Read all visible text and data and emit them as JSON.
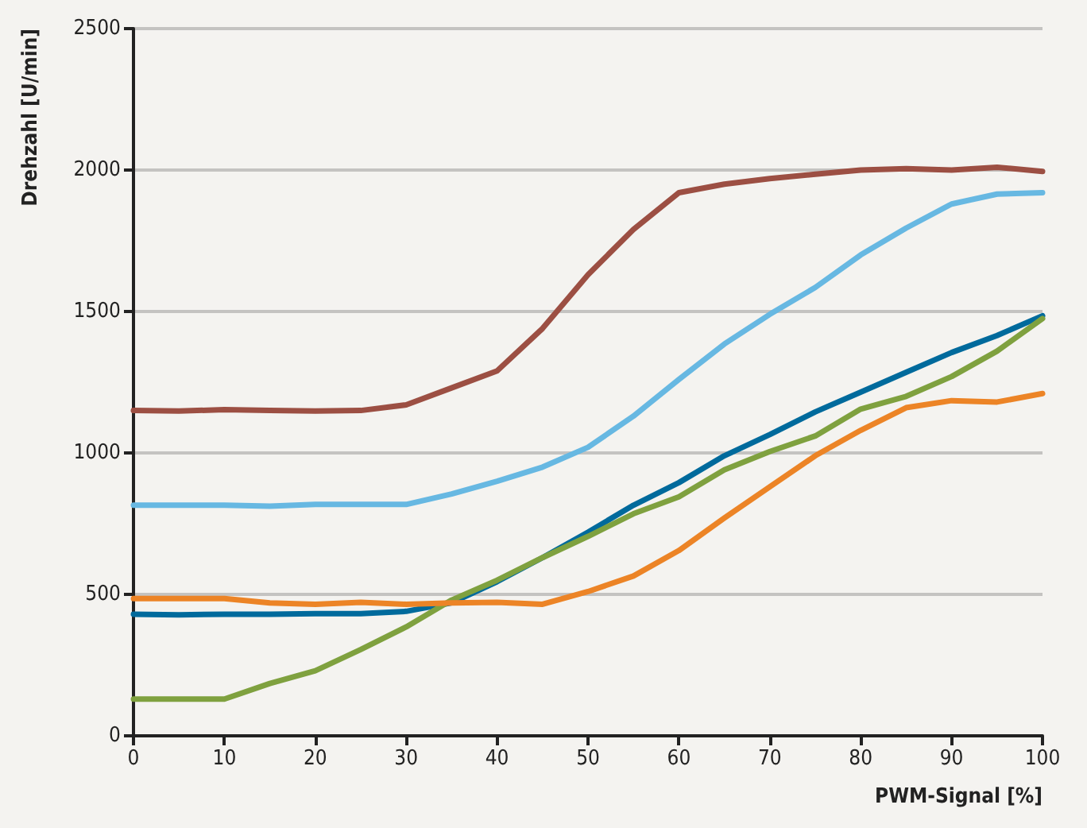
{
  "chart_data": {
    "type": "line",
    "xlabel": "PWM-Signal [%]",
    "ylabel": "Drehzahl [U/min]",
    "x": [
      0,
      5,
      10,
      15,
      20,
      25,
      30,
      35,
      40,
      45,
      50,
      55,
      60,
      65,
      70,
      75,
      80,
      85,
      90,
      95,
      100
    ],
    "xlim": [
      0,
      100
    ],
    "xticks": [
      0,
      10,
      20,
      30,
      40,
      50,
      60,
      70,
      80,
      90,
      100
    ],
    "ylim": [
      0,
      2500
    ],
    "yticks": [
      0,
      500,
      1000,
      1500,
      2000,
      2500
    ],
    "grid": "y",
    "legend": false,
    "marker": "none",
    "line_style": "solid",
    "series": [
      {
        "color": "#9c4f43",
        "values": [
          1150,
          1148,
          1153,
          1150,
          1148,
          1150,
          1170,
          1230,
          1290,
          1440,
          1630,
          1790,
          1920,
          1950,
          1970,
          1985,
          2000,
          2005,
          2000,
          2010,
          1995
        ]
      },
      {
        "color": "#67b8e2",
        "values": [
          815,
          815,
          815,
          812,
          818,
          818,
          818,
          855,
          900,
          950,
          1020,
          1130,
          1260,
          1385,
          1490,
          1585,
          1700,
          1795,
          1880,
          1915,
          1920
        ]
      },
      {
        "color": "#006a9c",
        "values": [
          430,
          428,
          430,
          430,
          432,
          432,
          440,
          470,
          545,
          630,
          720,
          815,
          895,
          990,
          1065,
          1145,
          1215,
          1285,
          1355,
          1415,
          1485
        ]
      },
      {
        "color": "#7fa13f",
        "values": [
          130,
          130,
          130,
          185,
          230,
          305,
          385,
          480,
          550,
          630,
          705,
          785,
          845,
          940,
          1005,
          1060,
          1155,
          1200,
          1270,
          1360,
          1475
        ]
      },
      {
        "color": "#ec8426",
        "values": [
          485,
          485,
          485,
          470,
          465,
          472,
          465,
          470,
          472,
          465,
          510,
          565,
          655,
          770,
          880,
          990,
          1080,
          1160,
          1185,
          1180,
          1210
        ]
      }
    ]
  }
}
